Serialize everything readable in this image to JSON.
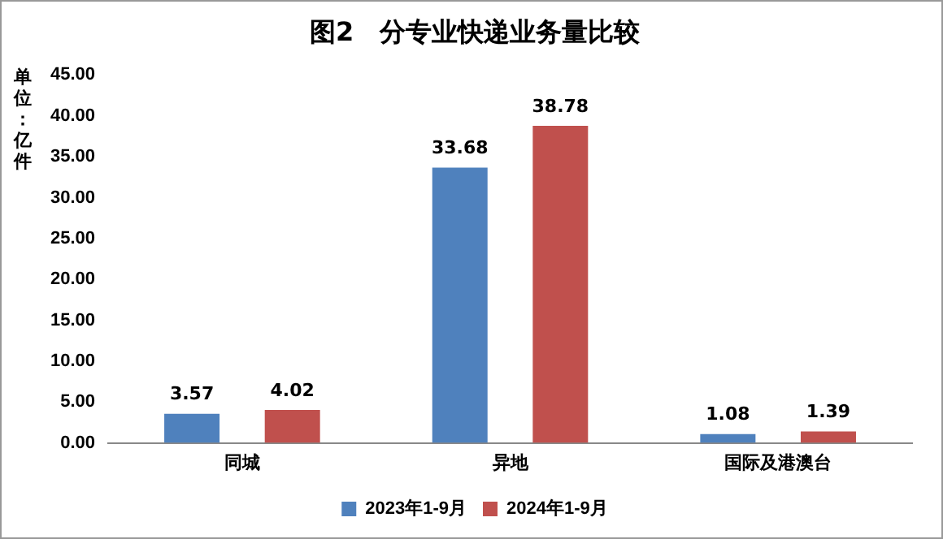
{
  "chart_data": {
    "type": "bar",
    "title": "图2　分专业快递业务量比较",
    "ylabel": "单位：亿件",
    "categories": [
      "同城",
      "异地",
      "国际及港澳台"
    ],
    "series": [
      {
        "name": "2023年1-9月",
        "color": "#4f81bd",
        "values": [
          3.57,
          33.68,
          1.08
        ]
      },
      {
        "name": "2024年1-9月",
        "color": "#c0504d",
        "values": [
          4.02,
          38.78,
          1.39
        ]
      }
    ],
    "ylim": [
      0,
      45
    ],
    "yticks": [
      {
        "value": 0,
        "label": "0.00"
      },
      {
        "value": 5,
        "label": "5.00"
      },
      {
        "value": 10,
        "label": "10.00"
      },
      {
        "value": 15,
        "label": "15.00"
      },
      {
        "value": 20,
        "label": "20.00"
      },
      {
        "value": 25,
        "label": "25.00"
      },
      {
        "value": 30,
        "label": "30.00"
      },
      {
        "value": 35,
        "label": "35.00"
      },
      {
        "value": 40,
        "label": "40.00"
      },
      {
        "value": 45,
        "label": "45.00"
      }
    ],
    "grid": false,
    "legend": "bottom",
    "data_labels": true
  }
}
